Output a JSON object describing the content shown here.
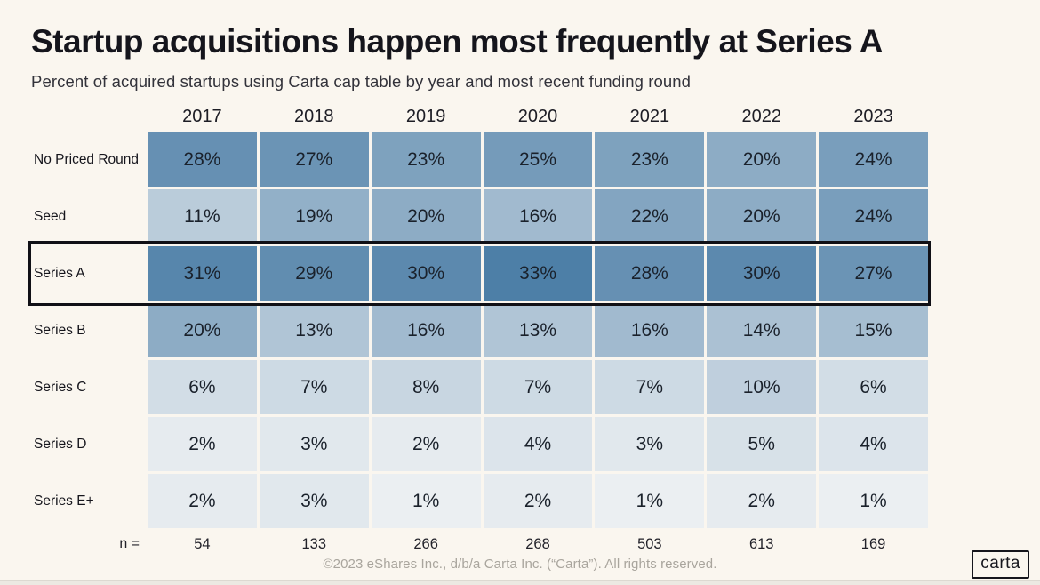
{
  "page": {
    "title": "Startup acquisitions happen most frequently at Series A",
    "subtitle": "Percent of acquired startups using Carta cap table by year and most recent funding round",
    "footer": "©2023 eShares Inc., d/b/a Carta Inc. (“Carta”). All rights reserved.",
    "logo_text": "carta",
    "background_color": "#faf6ef"
  },
  "chart_data": {
    "type": "heatmap",
    "title": "Startup acquisitions happen most frequently at Series A",
    "subtitle": "Percent of acquired startups using Carta cap table by year and most recent funding round",
    "columns": [
      "2017",
      "2018",
      "2019",
      "2020",
      "2021",
      "2022",
      "2023"
    ],
    "rows": [
      "No Priced Round",
      "Seed",
      "Series A",
      "Series B",
      "Series C",
      "Series D",
      "Series E+"
    ],
    "values": [
      [
        28,
        27,
        23,
        25,
        23,
        20,
        24
      ],
      [
        11,
        19,
        20,
        16,
        22,
        20,
        24
      ],
      [
        31,
        29,
        30,
        33,
        28,
        30,
        27
      ],
      [
        20,
        13,
        16,
        13,
        16,
        14,
        15
      ],
      [
        6,
        7,
        8,
        7,
        7,
        10,
        6
      ],
      [
        2,
        3,
        2,
        4,
        3,
        5,
        4
      ],
      [
        2,
        3,
        1,
        2,
        1,
        2,
        1
      ]
    ],
    "value_format": "percent",
    "highlighted_row": "Series A",
    "sample_sizes_label": "n =",
    "sample_sizes": [
      54,
      133,
      266,
      268,
      503,
      613,
      169
    ],
    "heat_scale": {
      "min_value": 0,
      "max_value": 33,
      "min_color": "#f0f2f4",
      "max_color": "#4d7fa7"
    }
  }
}
